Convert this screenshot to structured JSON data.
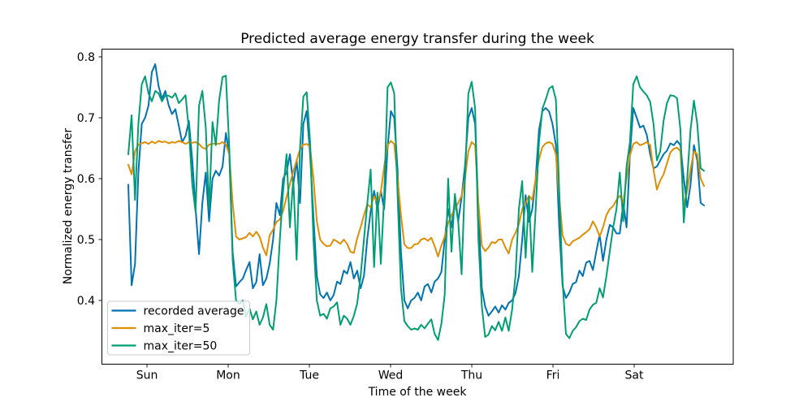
{
  "figure": {
    "title": "Predicted average energy transfer during the week",
    "xlabel": "Time of the week",
    "ylabel": "Normalized energy transfer"
  },
  "chart_data": {
    "type": "line",
    "title": "Predicted average energy transfer during the week",
    "xlabel": "Time of the week",
    "ylabel": "Normalized energy transfer",
    "x_unit": "hours from start of plotted week (~1 point per hour)",
    "grid": false,
    "background": "#ffffff",
    "ylim": [
      0.295,
      0.813
    ],
    "yticks": [
      0.4,
      0.5,
      0.6,
      0.7,
      0.8
    ],
    "ytick_labels": [
      "0.4",
      "0.5",
      "0.6",
      "0.7",
      "0.8"
    ],
    "xticks": {
      "labels": [
        "Sun",
        "Mon",
        "Tue",
        "Wed",
        "Thu",
        "Fri",
        "Sat"
      ],
      "hours": [
        5.55,
        29.66,
        53.78,
        77.9,
        102.02,
        126.14,
        150.26
      ]
    },
    "legend": {
      "position": "lower left",
      "entries": [
        "recorded average",
        "max_iter=5",
        "max_iter=50"
      ]
    },
    "series": [
      {
        "name": "recorded average",
        "color": "#0173b2",
        "values": [
          0.59,
          0.425,
          0.46,
          0.61,
          0.69,
          0.7,
          0.72,
          0.775,
          0.788,
          0.752,
          0.731,
          0.744,
          0.72,
          0.706,
          0.714,
          0.687,
          0.66,
          0.67,
          0.695,
          0.63,
          0.55,
          0.476,
          0.56,
          0.61,
          0.53,
          0.6,
          0.613,
          0.605,
          0.62,
          0.675,
          0.64,
          0.48,
          0.423,
          0.43,
          0.436,
          0.45,
          0.463,
          0.42,
          0.43,
          0.476,
          0.425,
          0.436,
          0.46,
          0.5,
          0.56,
          0.54,
          0.6,
          0.61,
          0.64,
          0.59,
          0.63,
          0.56,
          0.69,
          0.711,
          0.64,
          0.538,
          0.44,
          0.41,
          0.404,
          0.413,
          0.4,
          0.409,
          0.431,
          0.427,
          0.449,
          0.444,
          0.463,
          0.436,
          0.449,
          0.42,
          0.44,
          0.502,
          0.547,
          0.58,
          0.55,
          0.58,
          0.55,
          0.65,
          0.711,
          0.7,
          0.613,
          0.48,
          0.4,
          0.387,
          0.4,
          0.404,
          0.413,
          0.4,
          0.423,
          0.427,
          0.413,
          0.431,
          0.436,
          0.447,
          0.5,
          0.55,
          0.52,
          0.565,
          0.53,
          0.57,
          0.62,
          0.7,
          0.716,
          0.69,
          0.55,
          0.42,
          0.39,
          0.375,
          0.382,
          0.39,
          0.38,
          0.392,
          0.385,
          0.396,
          0.4,
          0.412,
          0.44,
          0.5,
          0.573,
          0.529,
          0.55,
          0.6,
          0.68,
          0.711,
          0.716,
          0.71,
          0.69,
          0.655,
          0.52,
          0.423,
          0.404,
          0.413,
          0.427,
          0.43,
          0.449,
          0.44,
          0.462,
          0.465,
          0.45,
          0.48,
          0.508,
          0.465,
          0.5,
          0.524,
          0.52,
          0.51,
          0.51,
          0.56,
          0.52,
          0.64,
          0.716,
          0.7,
          0.684,
          0.687,
          0.672,
          0.64,
          0.617,
          0.62,
          0.63,
          0.64,
          0.646,
          0.658,
          0.655,
          0.662,
          0.655,
          0.6,
          0.553,
          0.59,
          0.655,
          0.63,
          0.56,
          0.556
        ]
      },
      {
        "name": "max_iter=5",
        "color": "#de8f05",
        "values": [
          0.623,
          0.607,
          0.645,
          0.656,
          0.658,
          0.66,
          0.657,
          0.661,
          0.658,
          0.662,
          0.66,
          0.661,
          0.658,
          0.66,
          0.659,
          0.662,
          0.66,
          0.657,
          0.66,
          0.659,
          0.66,
          0.657,
          0.651,
          0.649,
          0.656,
          0.657,
          0.658,
          0.657,
          0.66,
          0.656,
          0.64,
          0.56,
          0.505,
          0.5,
          0.502,
          0.504,
          0.511,
          0.505,
          0.513,
          0.505,
          0.487,
          0.474,
          0.507,
          0.516,
          0.529,
          0.533,
          0.547,
          0.57,
          0.591,
          0.612,
          0.63,
          0.648,
          0.656,
          0.657,
          0.652,
          0.6,
          0.53,
          0.5,
          0.493,
          0.489,
          0.49,
          0.5,
          0.497,
          0.493,
          0.5,
          0.493,
          0.48,
          0.478,
          0.502,
          0.52,
          0.54,
          0.558,
          0.553,
          0.571,
          0.56,
          0.578,
          0.62,
          0.655,
          0.662,
          0.657,
          0.6,
          0.54,
          0.492,
          0.486,
          0.486,
          0.492,
          0.493,
          0.5,
          0.502,
          0.498,
          0.503,
          0.489,
          0.472,
          0.49,
          0.505,
          0.527,
          0.54,
          0.551,
          0.56,
          0.572,
          0.6,
          0.645,
          0.66,
          0.655,
          0.56,
          0.49,
          0.481,
          0.487,
          0.496,
          0.494,
          0.5,
          0.5,
          0.487,
          0.477,
          0.5,
          0.511,
          0.525,
          0.55,
          0.56,
          0.572,
          0.565,
          0.6,
          0.632,
          0.652,
          0.658,
          0.66,
          0.657,
          0.64,
          0.57,
          0.507,
          0.493,
          0.49,
          0.497,
          0.5,
          0.503,
          0.508,
          0.512,
          0.517,
          0.53,
          0.52,
          0.505,
          0.52,
          0.54,
          0.55,
          0.555,
          0.565,
          0.572,
          0.56,
          0.6,
          0.638,
          0.657,
          0.66,
          0.655,
          0.657,
          0.66,
          0.655,
          0.615,
          0.582,
          0.597,
          0.607,
          0.625,
          0.643,
          0.649,
          0.651,
          0.645,
          0.555,
          0.58,
          0.615,
          0.645,
          0.64,
          0.6,
          0.588
        ]
      },
      {
        "name": "max_iter=50",
        "color": "#029e73",
        "values": [
          0.64,
          0.704,
          0.565,
          0.69,
          0.755,
          0.768,
          0.74,
          0.727,
          0.744,
          0.74,
          0.727,
          0.737,
          0.736,
          0.733,
          0.74,
          0.724,
          0.73,
          0.737,
          0.68,
          0.59,
          0.545,
          0.72,
          0.744,
          0.684,
          0.551,
          0.693,
          0.655,
          0.729,
          0.767,
          0.769,
          0.65,
          0.467,
          0.4,
          0.394,
          0.4,
          0.373,
          0.387,
          0.369,
          0.382,
          0.36,
          0.372,
          0.394,
          0.36,
          0.352,
          0.4,
          0.5,
          0.58,
          0.64,
          0.52,
          0.6,
          0.467,
          0.65,
          0.735,
          0.742,
          0.66,
          0.5,
          0.4,
          0.375,
          0.378,
          0.37,
          0.387,
          0.39,
          0.397,
          0.36,
          0.375,
          0.37,
          0.36,
          0.375,
          0.395,
          0.44,
          0.5,
          0.56,
          0.615,
          0.455,
          0.577,
          0.46,
          0.57,
          0.75,
          0.758,
          0.74,
          0.57,
          0.42,
          0.366,
          0.358,
          0.352,
          0.354,
          0.352,
          0.36,
          0.354,
          0.362,
          0.369,
          0.345,
          0.335,
          0.362,
          0.41,
          0.6,
          0.48,
          0.575,
          0.53,
          0.443,
          0.6,
          0.74,
          0.759,
          0.716,
          0.5,
          0.39,
          0.34,
          0.344,
          0.358,
          0.351,
          0.365,
          0.35,
          0.372,
          0.35,
          0.385,
          0.44,
          0.55,
          0.596,
          0.47,
          0.57,
          0.447,
          0.55,
          0.66,
          0.715,
          0.73,
          0.748,
          0.752,
          0.73,
          0.58,
          0.43,
          0.345,
          0.338,
          0.35,
          0.356,
          0.366,
          0.37,
          0.368,
          0.385,
          0.393,
          0.396,
          0.42,
          0.405,
          0.44,
          0.48,
          0.52,
          0.55,
          0.61,
          0.53,
          0.62,
          0.66,
          0.755,
          0.768,
          0.75,
          0.743,
          0.737,
          0.726,
          0.69,
          0.63,
          0.645,
          0.695,
          0.724,
          0.737,
          0.736,
          0.732,
          0.68,
          0.528,
          0.6,
          0.68,
          0.728,
          0.69,
          0.617,
          0.613
        ]
      }
    ]
  }
}
